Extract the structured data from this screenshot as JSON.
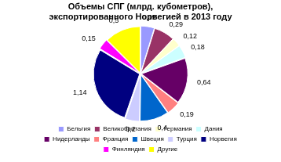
{
  "chart_data": {
    "type": "pie",
    "title": [
      "Объемы СПГ (млрд. кубометров),",
      "экспортированного Норвегией в 2013 году"
    ],
    "categories": [
      "Бельгия",
      "Великобритания",
      "Германия",
      "Дания",
      "Нидерланды",
      "Франция",
      "Швеция",
      "Турция",
      "Норвегия",
      "Финляндия",
      "Другие"
    ],
    "values": [
      0.19,
      0.29,
      0.12,
      0.18,
      0.64,
      0.19,
      0.4,
      0.2,
      1.14,
      0.15,
      0.5
    ],
    "value_labels": [
      "0,19",
      "0,29",
      "0,12",
      "0,18",
      "0,64",
      "0,19",
      "0,4",
      "0,2",
      "1,14",
      "0,15",
      "0,5"
    ],
    "colors": [
      "#9999ff",
      "#993366",
      "#ffffcc",
      "#ccffff",
      "#660066",
      "#ff8080",
      "#0066cc",
      "#ccccff",
      "#000080",
      "#ff00ff",
      "#ffff00"
    ],
    "data_labels": true,
    "legend": "bottom"
  }
}
